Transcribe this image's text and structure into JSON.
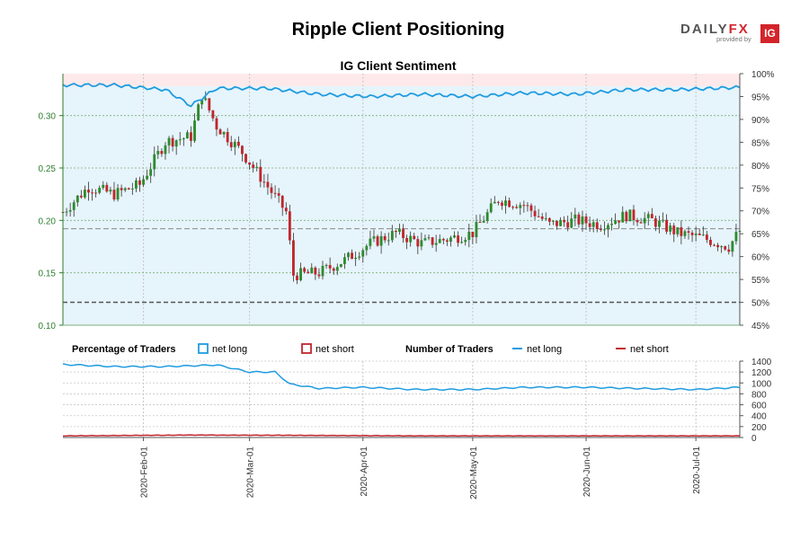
{
  "header": {
    "title": "Ripple Client Positioning",
    "logo_daily": "DAILY",
    "logo_fx": "FX",
    "logo_provided": "provided by",
    "logo_ig": "IG"
  },
  "colors": {
    "net_long": "#1f9be0",
    "net_short": "#c0262d",
    "candle_up": "#2e8b2e",
    "candle_down": "#c0262d",
    "long_zone": "#e6f4fb",
    "short_zone": "#fde9ea",
    "price_axis": "#2e7d2e"
  },
  "chart_data": [
    {
      "type": "candlestick",
      "title": "IG Client Sentiment",
      "ylim": [
        0.1,
        0.34
      ],
      "y_ticks": [
        "0.10",
        "0.15",
        "0.20",
        "0.25",
        "0.30"
      ],
      "y2lim": [
        45,
        100
      ],
      "y2_ticks": [
        "45%",
        "50%",
        "55%",
        "60%",
        "65%",
        "70%",
        "75%",
        "80%",
        "85%",
        "90%",
        "95%",
        "100%"
      ],
      "x_ticks": [
        "2020-Feb-01",
        "2020-Mar-01",
        "2020-Apr-01",
        "2020-May-01",
        "2020-Jun-01",
        "2020-Jul-01"
      ],
      "x_range": [
        "2020-Jan-10",
        "2020-Jul-13"
      ],
      "reference_lines": {
        "price": 0.192,
        "pct": 50
      },
      "price_close_weekly": {
        "dates": [
          "2020-Jan-10",
          "2020-Jan-17",
          "2020-Jan-24",
          "2020-Jan-31",
          "2020-Feb-07",
          "2020-Feb-14",
          "2020-Feb-17",
          "2020-Feb-21",
          "2020-Feb-28",
          "2020-Mar-06",
          "2020-Mar-11",
          "2020-Mar-13",
          "2020-Mar-20",
          "2020-Mar-27",
          "2020-Apr-03",
          "2020-Apr-10",
          "2020-Apr-17",
          "2020-Apr-24",
          "2020-May-01",
          "2020-May-08",
          "2020-May-15",
          "2020-May-22",
          "2020-May-29",
          "2020-Jun-05",
          "2020-Jun-12",
          "2020-Jun-19",
          "2020-Jun-26",
          "2020-Jul-03",
          "2020-Jul-10",
          "2020-Jul-13"
        ],
        "close": [
          0.208,
          0.232,
          0.225,
          0.234,
          0.275,
          0.28,
          0.32,
          0.29,
          0.265,
          0.232,
          0.208,
          0.148,
          0.15,
          0.162,
          0.178,
          0.188,
          0.178,
          0.182,
          0.188,
          0.22,
          0.215,
          0.196,
          0.2,
          0.196,
          0.205,
          0.2,
          0.188,
          0.183,
          0.175,
          0.19
        ]
      },
      "pct_net_long": {
        "dates": [
          "2020-Jan-10",
          "2020-Jan-24",
          "2020-Feb-07",
          "2020-Feb-14",
          "2020-Feb-21",
          "2020-Mar-06",
          "2020-Mar-20",
          "2020-Apr-03",
          "2020-Apr-17",
          "2020-May-01",
          "2020-May-15",
          "2020-May-29",
          "2020-Jun-12",
          "2020-Jun-26",
          "2020-Jul-13"
        ],
        "values": [
          97.5,
          97.5,
          96.5,
          93.0,
          96.8,
          96.8,
          95.5,
          95.0,
          95.5,
          95.0,
          95.8,
          95.5,
          96.5,
          96.5,
          97.0
        ]
      }
    },
    {
      "type": "line",
      "title": "Number of Traders",
      "ylim": [
        0,
        1400
      ],
      "y_ticks": [
        "0",
        "200",
        "400",
        "600",
        "800",
        "1000",
        "1200",
        "1400"
      ],
      "series": [
        {
          "name": "net long",
          "dates": [
            "2020-Jan-10",
            "2020-Jan-24",
            "2020-Feb-07",
            "2020-Feb-21",
            "2020-Mar-01",
            "2020-Mar-08",
            "2020-Mar-12",
            "2020-Mar-20",
            "2020-Apr-01",
            "2020-Apr-15",
            "2020-May-01",
            "2020-May-15",
            "2020-Jun-01",
            "2020-Jun-15",
            "2020-Jul-01",
            "2020-Jul-13"
          ],
          "values": [
            1340,
            1300,
            1300,
            1330,
            1200,
            1200,
            980,
            900,
            920,
            880,
            880,
            920,
            920,
            900,
            880,
            920
          ]
        },
        {
          "name": "net short",
          "dates": [
            "2020-Jan-10",
            "2020-Feb-14",
            "2020-Mar-12",
            "2020-Apr-15",
            "2020-May-15",
            "2020-Jun-15",
            "2020-Jul-13"
          ],
          "values": [
            30,
            45,
            40,
            30,
            30,
            30,
            30
          ]
        }
      ]
    }
  ],
  "legend": {
    "pct_header": "Percentage of Traders",
    "pct_long": "net long",
    "pct_short": "net short",
    "num_header": "Number of Traders",
    "num_long": "net long",
    "num_short": "net short"
  }
}
